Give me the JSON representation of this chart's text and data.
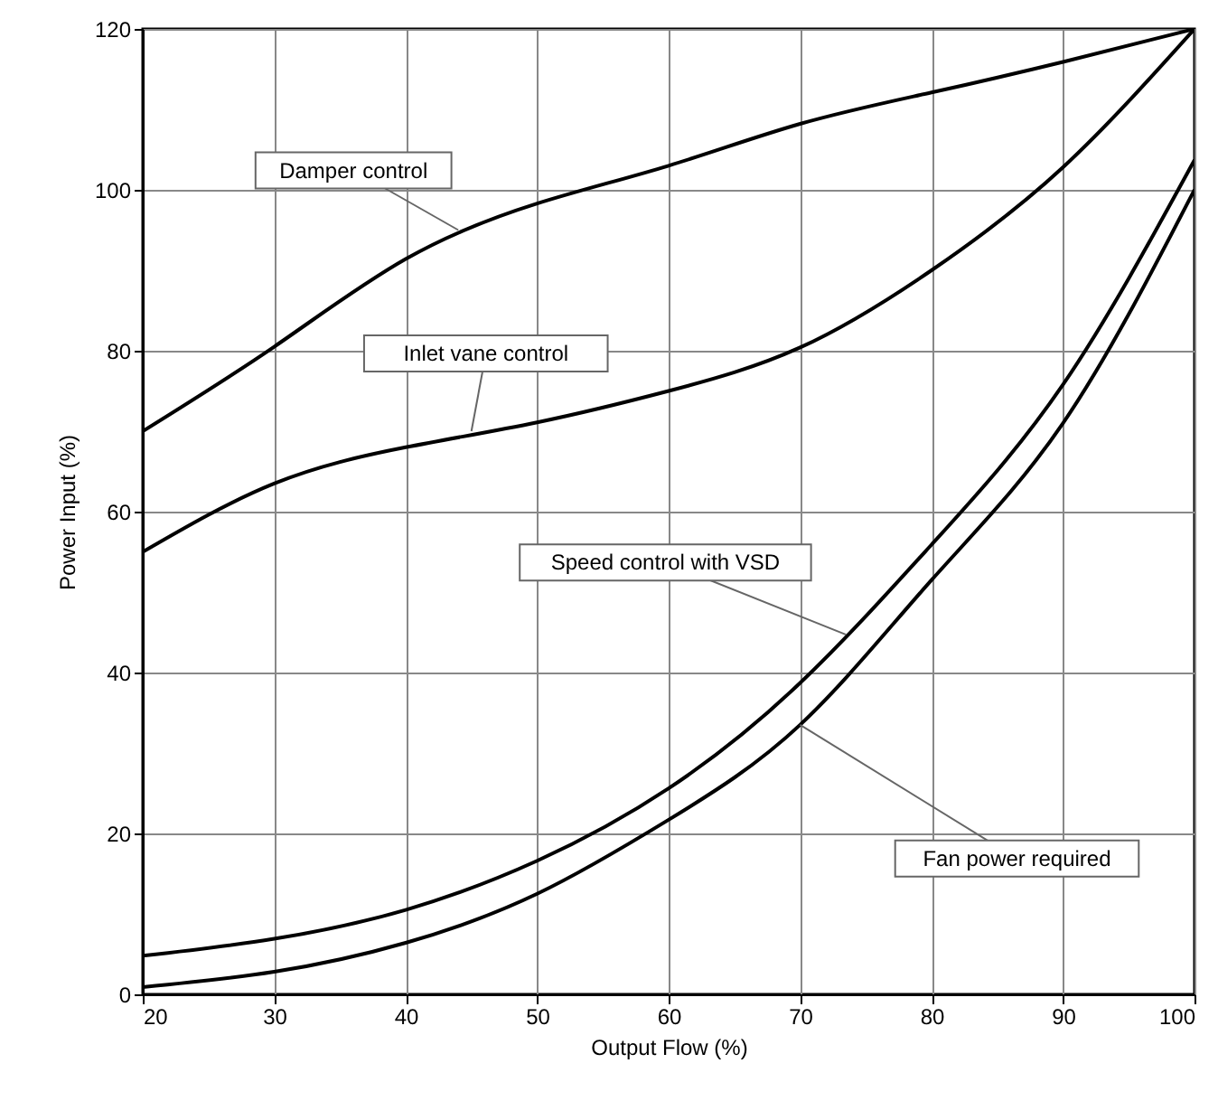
{
  "chart_data": {
    "type": "line",
    "xlabel": "Output Flow (%)",
    "ylabel": "Power Input (%)",
    "x": [
      20,
      30,
      40,
      50,
      60,
      70,
      80,
      90,
      100
    ],
    "series": [
      {
        "color": "#000000",
        "values": [
          70,
          80.5,
          91.4,
          98.3,
          103,
          108.2,
          112.1,
          115.9,
          120
        ]
      },
      {
        "color": "#000000",
        "values": [
          55,
          63.5,
          68,
          71.1,
          75,
          80.4,
          90,
          102.8,
          120
        ]
      },
      {
        "color": "#000000",
        "values": [
          4.8,
          6.9,
          10.5,
          16.6,
          25.6,
          38.7,
          55.9,
          75.8,
          103.7
        ]
      },
      {
        "color": "#000000",
        "values": [
          0.9,
          2.8,
          6.4,
          12.5,
          21.7,
          33.5,
          51.5,
          71,
          100
        ]
      }
    ],
    "xlim": [
      20,
      100
    ],
    "xticks": [
      20,
      30,
      40,
      50,
      60,
      70,
      80,
      90,
      100
    ],
    "ylim": [
      0,
      120
    ],
    "yticks": [
      0,
      20,
      40,
      60,
      80,
      100,
      120
    ],
    "grid": true,
    "marker": "none",
    "line_style": "solid",
    "annotations": [
      {
        "text": "Damper control",
        "x": 44,
        "y": 95
      },
      {
        "text": "Inlet vane control",
        "x": 45,
        "y": 70
      },
      {
        "text": "Speed control with VSD",
        "x": 73.5,
        "y": 44.7
      },
      {
        "text": "Fan power required",
        "x": 70,
        "y": 33.5
      }
    ]
  }
}
